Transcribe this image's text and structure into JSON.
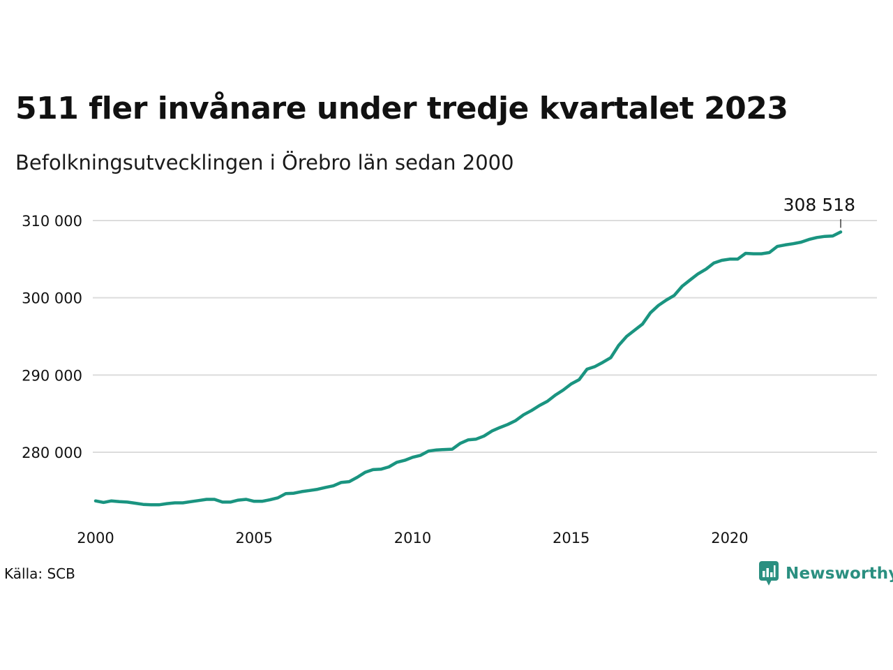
{
  "title": "511 fler invånare under tredje kvartalet 2023",
  "subtitle": "Befolkningsutvecklingen i Örebro län sedan 2000",
  "source": "Källa: SCB",
  "brand": {
    "name": "Newsworthy",
    "icon": "newsworthy-logo-icon",
    "color": "#2a8f80"
  },
  "colors": {
    "line": "#1a9480",
    "grid": "#dcdcdc",
    "text": "#111111"
  },
  "chart_data": {
    "type": "line",
    "title": "511 fler invånare under tredje kvartalet 2023",
    "subtitle": "Befolkningsutvecklingen i Örebro län sedan 2000",
    "xlabel": "",
    "ylabel": "",
    "xlim": [
      2000,
      2024.6
    ],
    "ylim": [
      272000,
      311500
    ],
    "x_ticks": [
      2000,
      2005,
      2010,
      2015,
      2020
    ],
    "x_tick_labels": [
      "2000",
      "2005",
      "2010",
      "2015",
      "2020"
    ],
    "y_ticks": [
      280000,
      290000,
      300000,
      310000
    ],
    "y_tick_labels": [
      "280 000",
      "290 000",
      "300 000",
      "310 000"
    ],
    "grid": "horizontal",
    "end_label": "308 518",
    "series": [
      {
        "values": [
          {
            "x": 2000.0,
            "y": 273700
          },
          {
            "x": 2000.25,
            "y": 273500
          },
          {
            "x": 2000.5,
            "y": 273700
          },
          {
            "x": 2000.75,
            "y": 273600
          },
          {
            "x": 2001.0,
            "y": 273550
          },
          {
            "x": 2001.25,
            "y": 273400
          },
          {
            "x": 2001.5,
            "y": 273250
          },
          {
            "x": 2001.75,
            "y": 273200
          },
          {
            "x": 2002.0,
            "y": 273200
          },
          {
            "x": 2002.25,
            "y": 273350
          },
          {
            "x": 2002.5,
            "y": 273450
          },
          {
            "x": 2002.75,
            "y": 273450
          },
          {
            "x": 2003.0,
            "y": 273600
          },
          {
            "x": 2003.25,
            "y": 273750
          },
          {
            "x": 2003.5,
            "y": 273900
          },
          {
            "x": 2003.75,
            "y": 273900
          },
          {
            "x": 2004.0,
            "y": 273550
          },
          {
            "x": 2004.25,
            "y": 273550
          },
          {
            "x": 2004.5,
            "y": 273800
          },
          {
            "x": 2004.75,
            "y": 273900
          },
          {
            "x": 2005.0,
            "y": 273650
          },
          {
            "x": 2005.25,
            "y": 273650
          },
          {
            "x": 2005.5,
            "y": 273850
          },
          {
            "x": 2005.75,
            "y": 274100
          },
          {
            "x": 2006.0,
            "y": 274650
          },
          {
            "x": 2006.25,
            "y": 274700
          },
          {
            "x": 2006.5,
            "y": 274900
          },
          {
            "x": 2006.75,
            "y": 275050
          },
          {
            "x": 2007.0,
            "y": 275200
          },
          {
            "x": 2007.25,
            "y": 275450
          },
          {
            "x": 2007.5,
            "y": 275650
          },
          {
            "x": 2007.75,
            "y": 276100
          },
          {
            "x": 2008.0,
            "y": 276200
          },
          {
            "x": 2008.25,
            "y": 276750
          },
          {
            "x": 2008.5,
            "y": 277400
          },
          {
            "x": 2008.75,
            "y": 277750
          },
          {
            "x": 2009.0,
            "y": 277800
          },
          {
            "x": 2009.25,
            "y": 278100
          },
          {
            "x": 2009.5,
            "y": 278700
          },
          {
            "x": 2009.75,
            "y": 278950
          },
          {
            "x": 2010.0,
            "y": 279350
          },
          {
            "x": 2010.25,
            "y": 279600
          },
          {
            "x": 2010.5,
            "y": 280150
          },
          {
            "x": 2010.75,
            "y": 280300
          },
          {
            "x": 2011.0,
            "y": 280350
          },
          {
            "x": 2011.25,
            "y": 280400
          },
          {
            "x": 2011.5,
            "y": 281150
          },
          {
            "x": 2011.75,
            "y": 281600
          },
          {
            "x": 2012.0,
            "y": 281700
          },
          {
            "x": 2012.25,
            "y": 282100
          },
          {
            "x": 2012.5,
            "y": 282750
          },
          {
            "x": 2012.75,
            "y": 283200
          },
          {
            "x": 2013.0,
            "y": 283600
          },
          {
            "x": 2013.25,
            "y": 284100
          },
          {
            "x": 2013.5,
            "y": 284850
          },
          {
            "x": 2013.75,
            "y": 285400
          },
          {
            "x": 2014.0,
            "y": 286050
          },
          {
            "x": 2014.25,
            "y": 286600
          },
          {
            "x": 2014.5,
            "y": 287400
          },
          {
            "x": 2014.75,
            "y": 288050
          },
          {
            "x": 2015.0,
            "y": 288850
          },
          {
            "x": 2015.25,
            "y": 289400
          },
          {
            "x": 2015.5,
            "y": 290750
          },
          {
            "x": 2015.75,
            "y": 291100
          },
          {
            "x": 2016.0,
            "y": 291650
          },
          {
            "x": 2016.25,
            "y": 292250
          },
          {
            "x": 2016.5,
            "y": 293850
          },
          {
            "x": 2016.75,
            "y": 295000
          },
          {
            "x": 2017.0,
            "y": 295800
          },
          {
            "x": 2017.25,
            "y": 296600
          },
          {
            "x": 2017.5,
            "y": 298050
          },
          {
            "x": 2017.75,
            "y": 299000
          },
          {
            "x": 2018.0,
            "y": 299700
          },
          {
            "x": 2018.25,
            "y": 300300
          },
          {
            "x": 2018.5,
            "y": 301500
          },
          {
            "x": 2018.75,
            "y": 302300
          },
          {
            "x": 2019.0,
            "y": 303100
          },
          {
            "x": 2019.25,
            "y": 303700
          },
          {
            "x": 2019.5,
            "y": 304500
          },
          {
            "x": 2019.75,
            "y": 304850
          },
          {
            "x": 2020.0,
            "y": 305000
          },
          {
            "x": 2020.25,
            "y": 305000
          },
          {
            "x": 2020.5,
            "y": 305750
          },
          {
            "x": 2020.75,
            "y": 305700
          },
          {
            "x": 2021.0,
            "y": 305700
          },
          {
            "x": 2021.25,
            "y": 305850
          },
          {
            "x": 2021.5,
            "y": 306650
          },
          {
            "x": 2021.75,
            "y": 306850
          },
          {
            "x": 2022.0,
            "y": 307000
          },
          {
            "x": 2022.25,
            "y": 307200
          },
          {
            "x": 2022.5,
            "y": 307550
          },
          {
            "x": 2022.75,
            "y": 307800
          },
          {
            "x": 2023.0,
            "y": 307950
          },
          {
            "x": 2023.25,
            "y": 308007
          },
          {
            "x": 2023.5,
            "y": 308518
          }
        ]
      }
    ]
  }
}
